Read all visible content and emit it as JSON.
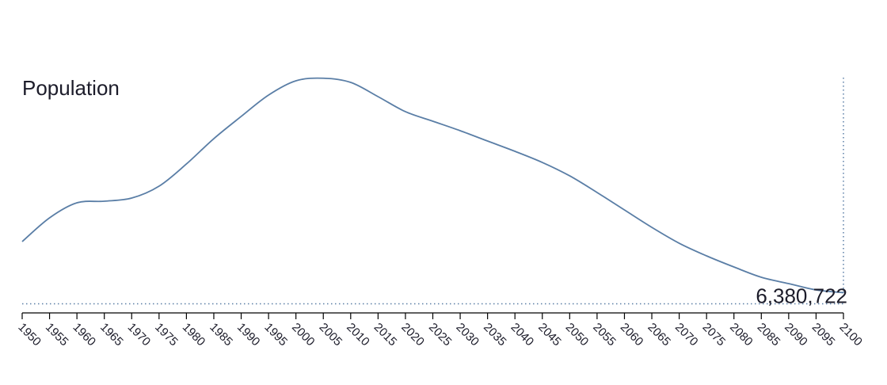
{
  "chart_data": {
    "type": "line",
    "title": "Population",
    "x": [
      1950,
      1955,
      1960,
      1965,
      1970,
      1975,
      1980,
      1985,
      1990,
      1995,
      2000,
      2005,
      2010,
      2015,
      2020,
      2025,
      2030,
      2035,
      2040,
      2045,
      2050,
      2055,
      2060,
      2065,
      2070,
      2075,
      2080,
      2085,
      2090,
      2095,
      2100
    ],
    "series": [
      {
        "color": "#5a7ea6",
        "values": [
          7240000,
          7640000,
          7893000,
          7920000,
          7973000,
          8173000,
          8547000,
          8973000,
          9347000,
          9707000,
          9947000,
          9990000,
          9920000,
          9680000,
          9427000,
          9267000,
          9107000,
          8933000,
          8760000,
          8573000,
          8347000,
          8067000,
          7773000,
          7480000,
          7213000,
          7000000,
          6813000,
          6640000,
          6533000,
          6427000,
          6380722
        ]
      }
    ],
    "hover_label": "6,380,722",
    "xlim": [
      1950,
      2100
    ],
    "xticks": [
      1950,
      1955,
      1960,
      1965,
      1970,
      1975,
      1980,
      1985,
      1990,
      1995,
      2000,
      2005,
      2010,
      2015,
      2020,
      2025,
      2030,
      2035,
      2040,
      2045,
      2050,
      2055,
      2060,
      2065,
      2070,
      2075,
      2080,
      2085,
      2090,
      2095,
      2100
    ],
    "ylim": [
      6200000,
      10000000
    ]
  }
}
